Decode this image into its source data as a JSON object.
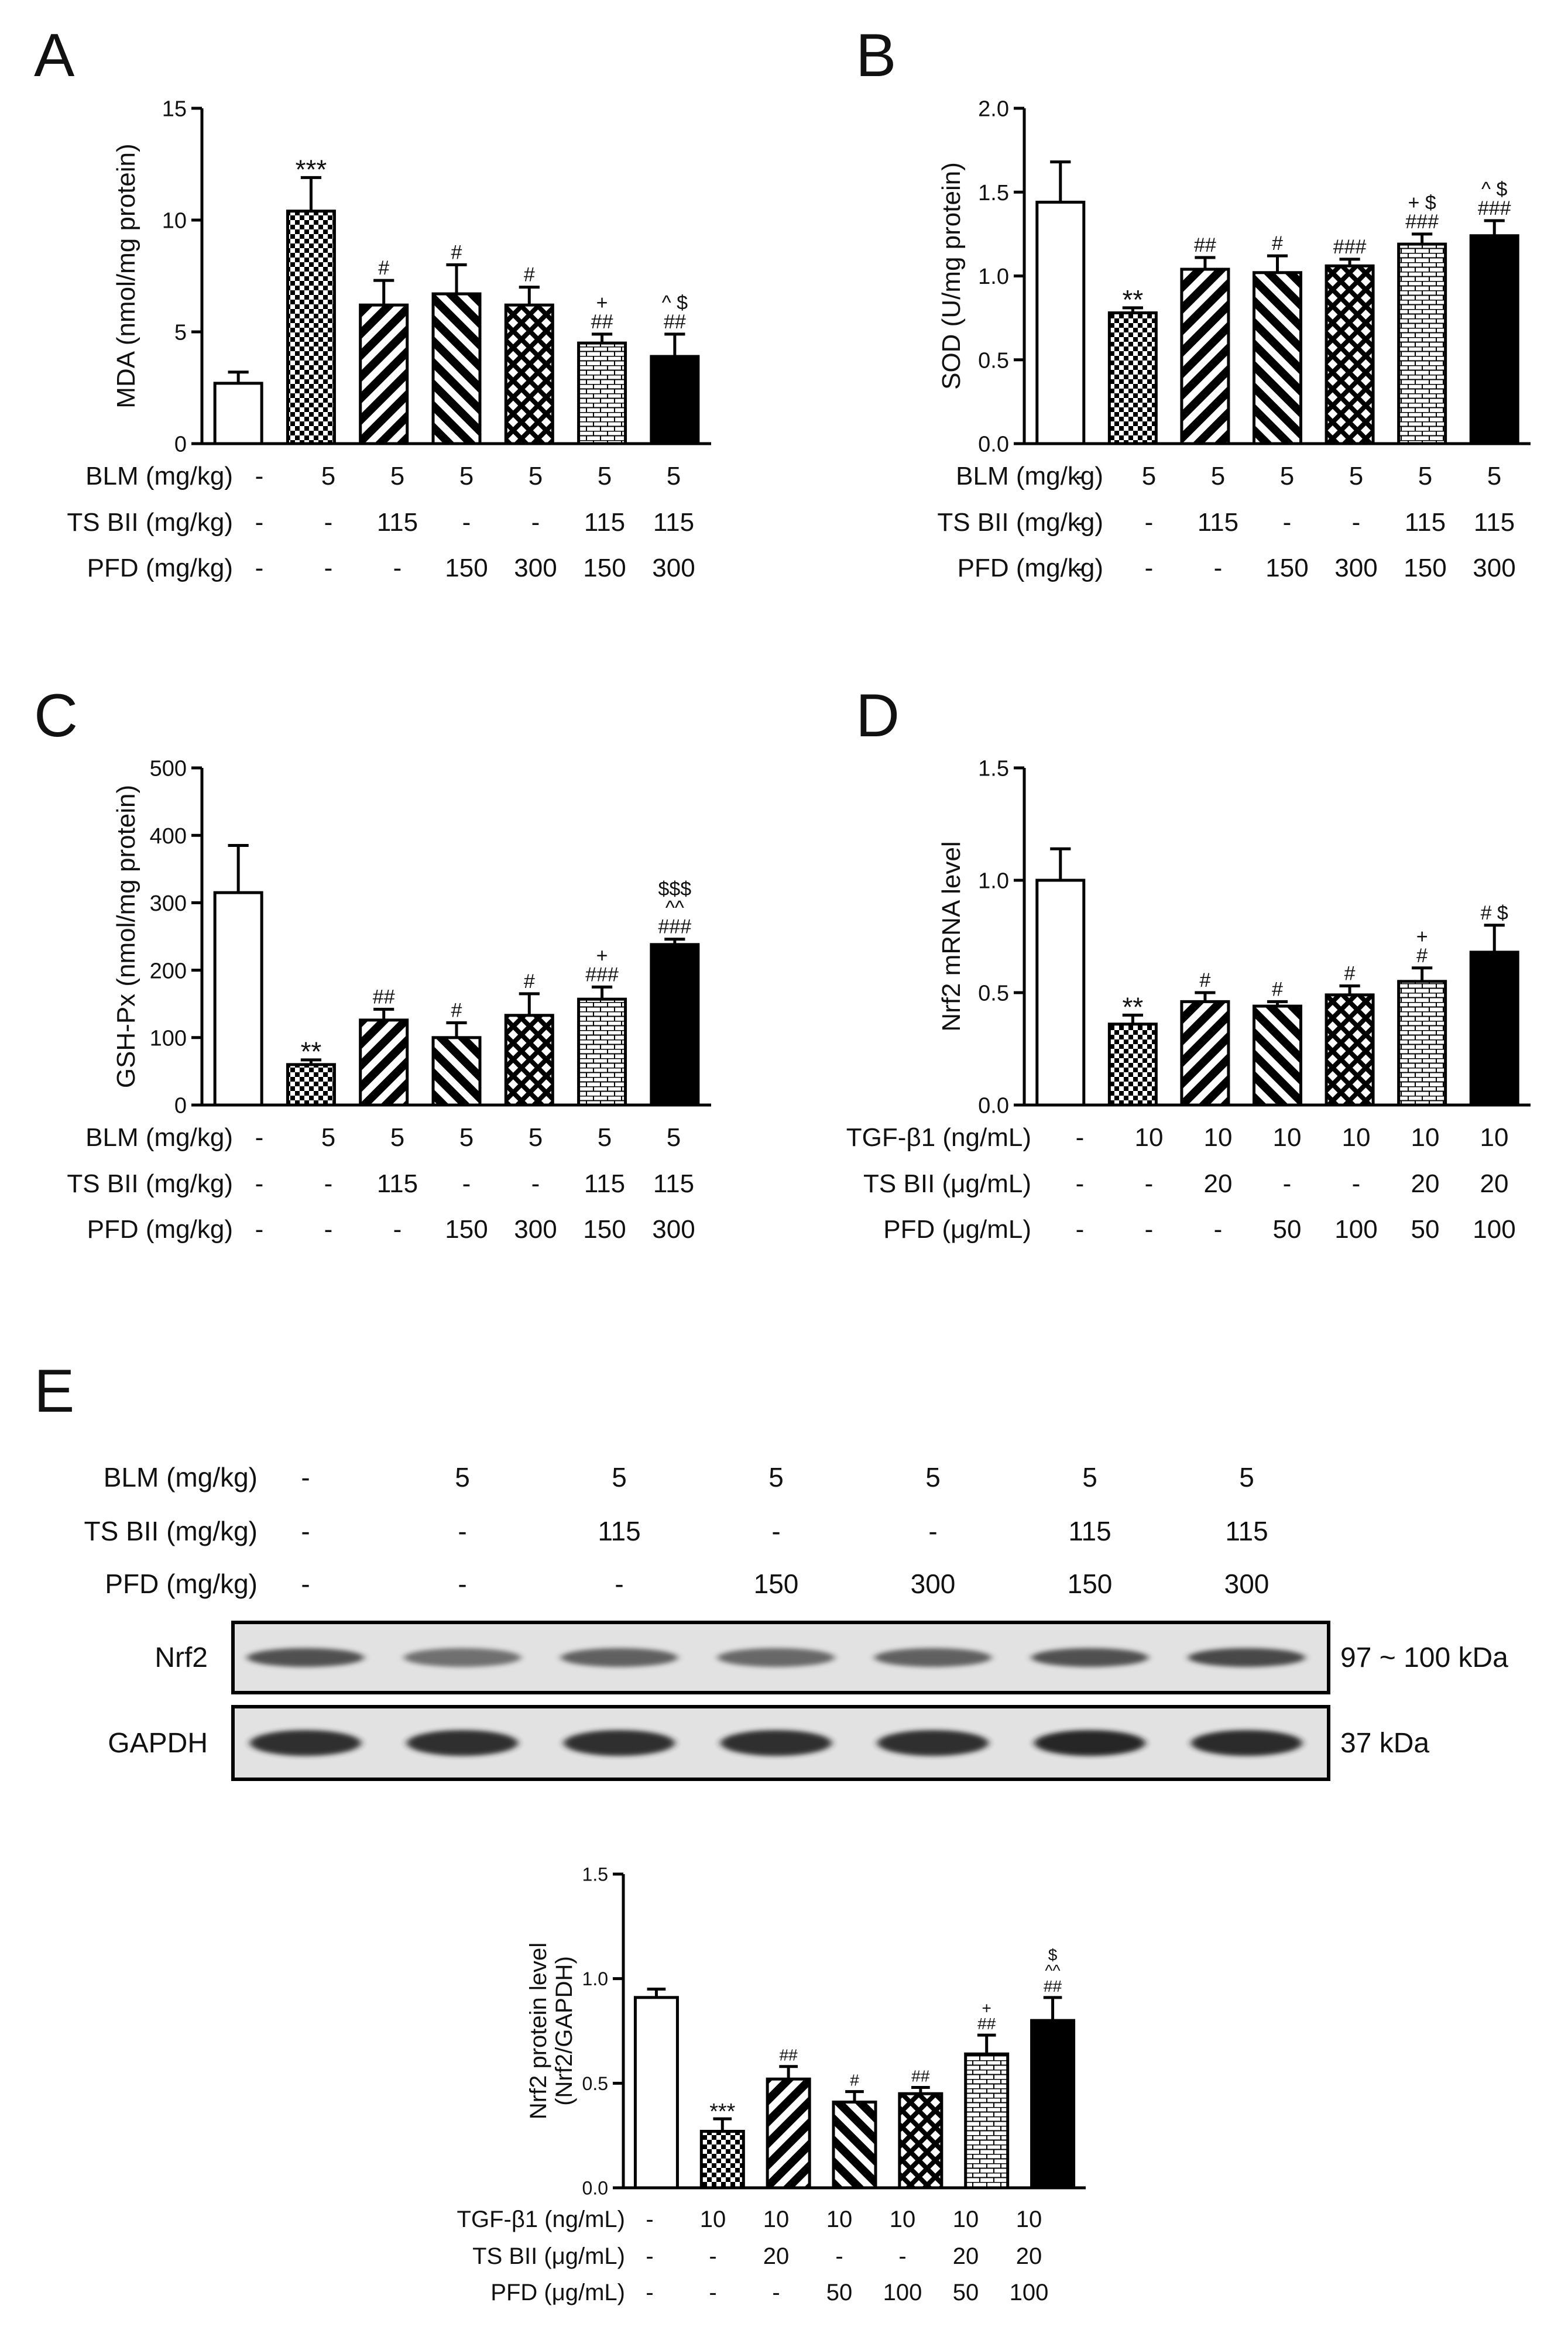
{
  "figure_panels": [
    "A",
    "B",
    "C",
    "D",
    "E"
  ],
  "chart_data": [
    {
      "panel": "A",
      "type": "bar",
      "ylabel": "MDA (nmol/mg protein)",
      "ylim": [
        0,
        15
      ],
      "yticks": [
        "0",
        "5",
        "10",
        "15"
      ],
      "values": [
        2.7,
        10.4,
        6.2,
        6.7,
        6.2,
        4.5,
        3.9
      ],
      "errors": [
        0.5,
        1.5,
        1.1,
        1.3,
        0.8,
        0.4,
        1.0
      ],
      "annotations": [
        "",
        "***",
        "#",
        "#",
        "#",
        "+|##",
        "^ $|##"
      ],
      "rows": [
        {
          "label": "BLM (mg/kg)",
          "values": [
            "-",
            "5",
            "5",
            "5",
            "5",
            "5",
            "5"
          ]
        },
        {
          "label": "TS BII (mg/kg)",
          "values": [
            "-",
            "-",
            "115",
            "-",
            "-",
            "115",
            "115"
          ]
        },
        {
          "label": "PFD (mg/kg)",
          "values": [
            "-",
            "-",
            "-",
            "150",
            "300",
            "150",
            "300"
          ]
        }
      ]
    },
    {
      "panel": "B",
      "type": "bar",
      "ylabel": "SOD (U/mg protein)",
      "ylim": [
        0,
        2
      ],
      "yticks": [
        "0.0",
        "0.5",
        "1.0",
        "1.5",
        "2.0"
      ],
      "values": [
        1.44,
        0.78,
        1.04,
        1.02,
        1.06,
        1.19,
        1.24
      ],
      "errors": [
        0.24,
        0.03,
        0.07,
        0.1,
        0.04,
        0.06,
        0.09
      ],
      "annotations": [
        "",
        "**",
        "##",
        "#",
        "###",
        "+ $|###",
        "^ $|###"
      ],
      "rows": [
        {
          "label": "BLM (mg/kg)",
          "values": [
            "-",
            "5",
            "5",
            "5",
            "5",
            "5",
            "5"
          ]
        },
        {
          "label": "TS BII (mg/kg)",
          "values": [
            "-",
            "-",
            "115",
            "-",
            "-",
            "115",
            "115"
          ]
        },
        {
          "label": "PFD (mg/kg)",
          "values": [
            "-",
            "-",
            "-",
            "150",
            "300",
            "150",
            "300"
          ]
        }
      ]
    },
    {
      "panel": "C",
      "type": "bar",
      "ylabel": "GSH-Px (nmol/mg protein)",
      "ylim": [
        0,
        500
      ],
      "yticks": [
        "0",
        "100",
        "200",
        "300",
        "400",
        "500"
      ],
      "values": [
        315,
        60,
        126,
        100,
        133,
        157,
        238
      ],
      "errors": [
        70,
        7,
        16,
        22,
        32,
        18,
        8
      ],
      "annotations": [
        "",
        "**",
        "##",
        "#",
        "#",
        "+|###",
        "$$$|^^|###"
      ],
      "rows": [
        {
          "label": "BLM (mg/kg)",
          "values": [
            "-",
            "5",
            "5",
            "5",
            "5",
            "5",
            "5"
          ]
        },
        {
          "label": "TS BII (mg/kg)",
          "values": [
            "-",
            "-",
            "115",
            "-",
            "-",
            "115",
            "115"
          ]
        },
        {
          "label": "PFD (mg/kg)",
          "values": [
            "-",
            "-",
            "-",
            "150",
            "300",
            "150",
            "300"
          ]
        }
      ]
    },
    {
      "panel": "D",
      "type": "bar",
      "ylabel": "Nrf2 mRNA level",
      "ylim": [
        0,
        1.5
      ],
      "yticks": [
        "0.0",
        "0.5",
        "1.0",
        "1.5"
      ],
      "values": [
        1.0,
        0.36,
        0.46,
        0.44,
        0.49,
        0.55,
        0.68
      ],
      "errors": [
        0.14,
        0.04,
        0.04,
        0.02,
        0.04,
        0.06,
        0.12
      ],
      "annotations": [
        "",
        "**",
        "#",
        "#",
        "#",
        "+|#",
        "# $"
      ],
      "rows": [
        {
          "label": "TGF-β1 (ng/mL)",
          "values": [
            "-",
            "10",
            "10",
            "10",
            "10",
            "10",
            "10"
          ]
        },
        {
          "label": "TS BII (μg/mL)",
          "values": [
            "-",
            "-",
            "20",
            "-",
            "-",
            "20",
            "20"
          ]
        },
        {
          "label": "PFD (μg/mL)",
          "values": [
            "-",
            "-",
            "-",
            "50",
            "100",
            "50",
            "100"
          ]
        }
      ]
    },
    {
      "panel": "E",
      "type": "bar",
      "ylabel": "Nrf2 protein level|(Nrf2/GAPDH)",
      "ylim": [
        0,
        1.5
      ],
      "yticks": [
        "0.0",
        "0.5",
        "1.0",
        "1.5"
      ],
      "values": [
        0.91,
        0.27,
        0.52,
        0.41,
        0.45,
        0.64,
        0.8
      ],
      "errors": [
        0.04,
        0.06,
        0.06,
        0.05,
        0.03,
        0.09,
        0.11
      ],
      "annotations": [
        "",
        "***",
        "##",
        "#",
        "##",
        "+|##",
        "$|^^|##"
      ],
      "rows": [
        {
          "label": "TGF-β1 (ng/mL)",
          "values": [
            "-",
            "10",
            "10",
            "10",
            "10",
            "10",
            "10"
          ]
        },
        {
          "label": "TS BII (μg/mL)",
          "values": [
            "-",
            "-",
            "20",
            "-",
            "-",
            "20",
            "20"
          ]
        },
        {
          "label": "PFD (μg/mL)",
          "values": [
            "-",
            "-",
            "-",
            "50",
            "100",
            "50",
            "100"
          ]
        }
      ]
    }
  ],
  "bar_fills": [
    "white",
    "checker",
    "diag-back",
    "diag-fwd",
    "diamond",
    "brick",
    "black"
  ],
  "western_blot": {
    "rows": [
      {
        "label": "BLM (mg/kg)",
        "values": [
          "-",
          "5",
          "5",
          "5",
          "5",
          "5",
          "5"
        ]
      },
      {
        "label": "TS BII (mg/kg)",
        "values": [
          "-",
          "-",
          "115",
          "-",
          "-",
          "115",
          "115"
        ]
      },
      {
        "label": "PFD (mg/kg)",
        "values": [
          "-",
          "-",
          "-",
          "150",
          "300",
          "150",
          "300"
        ]
      }
    ],
    "bands": [
      {
        "label": "Nrf2",
        "size": "97 ~ 100 kDa",
        "intensity": [
          0.75,
          0.55,
          0.65,
          0.6,
          0.65,
          0.75,
          0.8
        ]
      },
      {
        "label": "GAPDH",
        "size": "37 kDa",
        "intensity": [
          0.95,
          0.95,
          0.95,
          0.95,
          0.95,
          1.0,
          0.98
        ]
      }
    ]
  }
}
